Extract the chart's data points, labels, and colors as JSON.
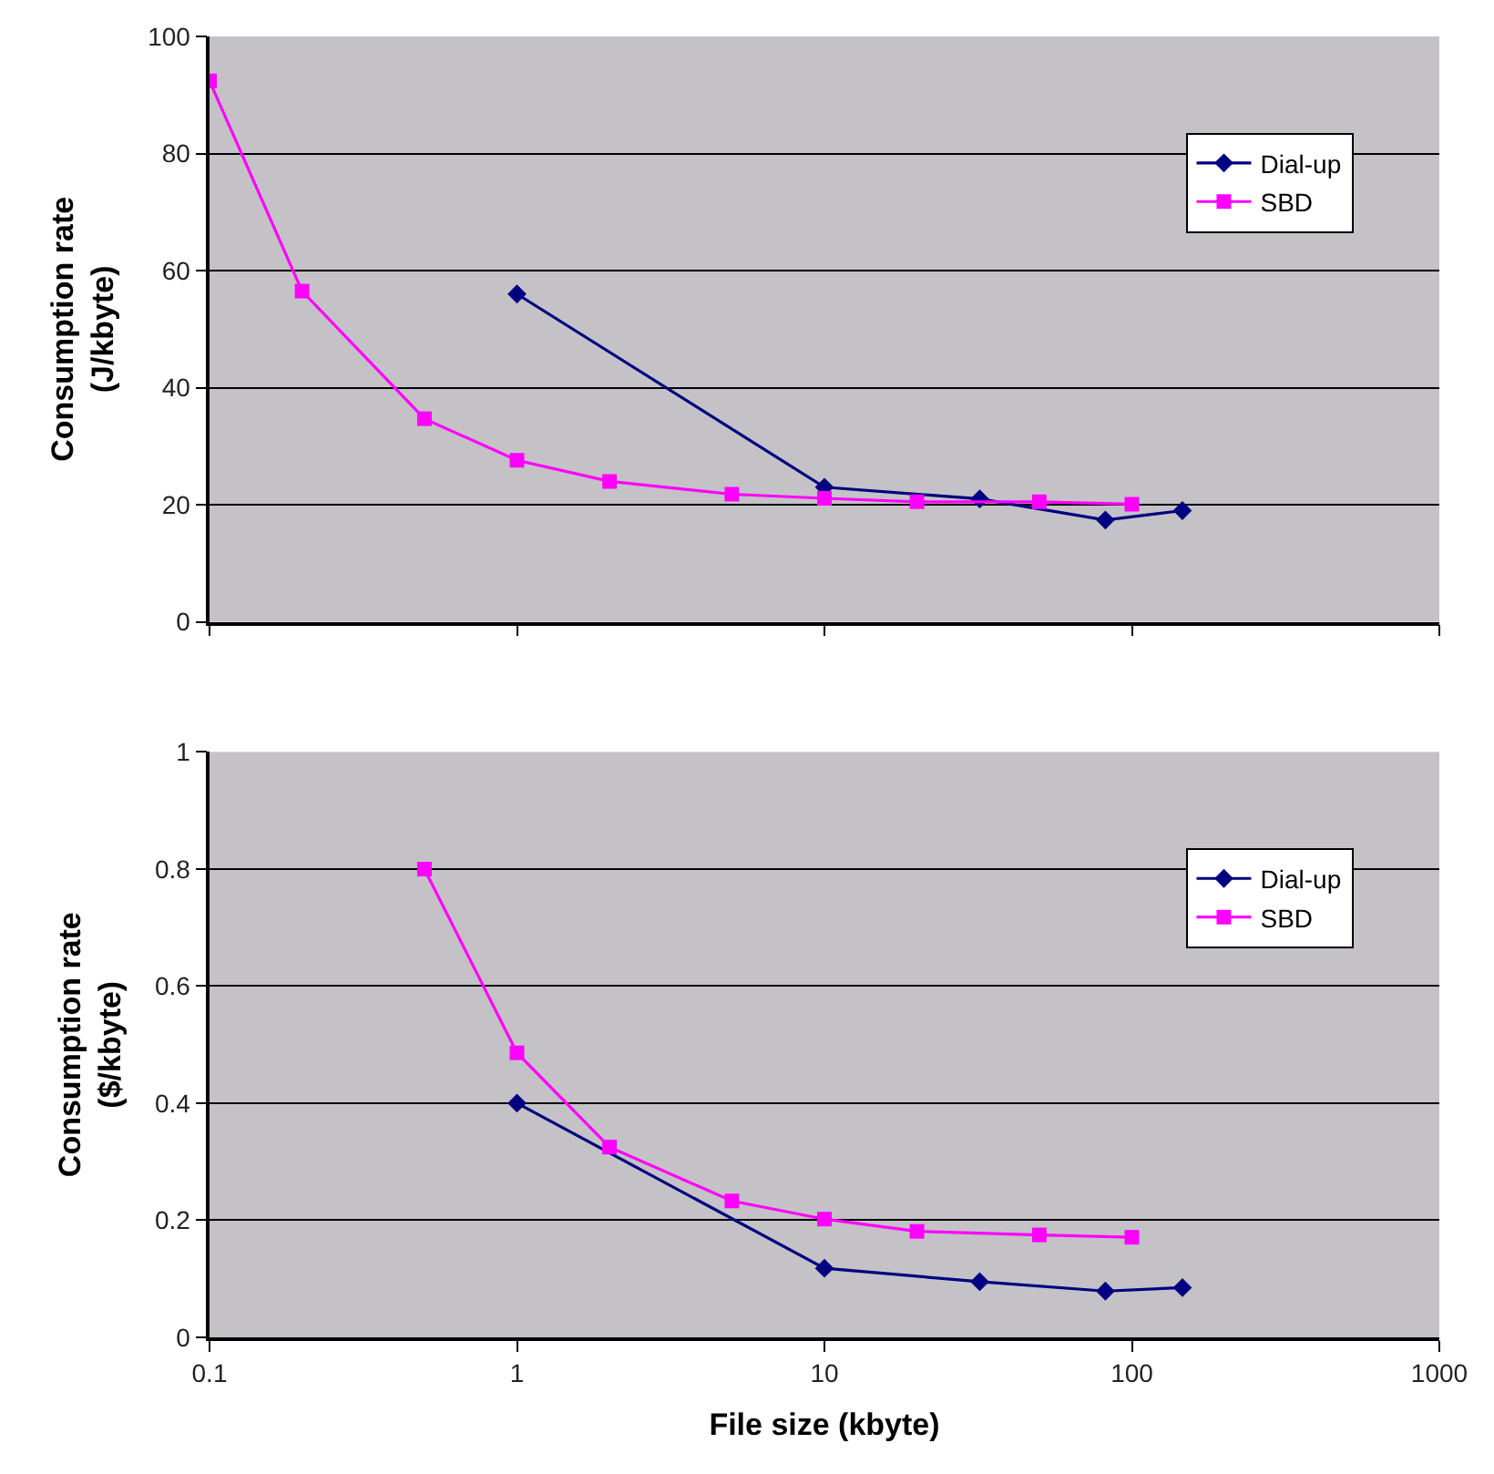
{
  "chart_data": [
    {
      "type": "line",
      "ylabel": "Consumption rate\n(J/kbyte)",
      "log": "x",
      "xlim": [
        0.1,
        1000
      ],
      "xticks": [
        0.1,
        1,
        10,
        100,
        1000
      ],
      "ylim": [
        0,
        100
      ],
      "yticks": [
        0,
        20,
        40,
        60,
        80,
        100
      ],
      "tick_labels": "y",
      "grid": "y",
      "legend": "right",
      "series": [
        {
          "name": "Dial-up",
          "color": "#000080",
          "marker": "diamond",
          "x": [
            1,
            10,
            32,
            82,
            146
          ],
          "values": [
            56,
            23,
            21,
            17.4,
            19
          ]
        },
        {
          "name": "SBD",
          "color": "#ff00ff",
          "marker": "square",
          "x": [
            0.1,
            0.2,
            0.5,
            1,
            2,
            5,
            10,
            20,
            50,
            100
          ],
          "values": [
            92.4,
            56.5,
            34.7,
            27.6,
            24,
            21.8,
            21.1,
            20.5,
            20.5,
            20.1
          ]
        }
      ]
    },
    {
      "type": "line",
      "ylabel": "Consumption rate\n($/kbyte)",
      "xlabel": "File size (kbyte)",
      "log": "x",
      "xlim": [
        0.1,
        1000
      ],
      "xticks": [
        0.1,
        1,
        10,
        100,
        1000
      ],
      "ylim": [
        0,
        1
      ],
      "yticks": [
        0,
        0.2,
        0.4,
        0.6,
        0.8,
        1
      ],
      "grid": "y",
      "legend": "right",
      "series": [
        {
          "name": "Dial-up",
          "color": "#000080",
          "marker": "diamond",
          "x": [
            1,
            10,
            32,
            82,
            146
          ],
          "values": [
            0.4,
            0.118,
            0.095,
            0.079,
            0.085
          ]
        },
        {
          "name": "SBD",
          "color": "#ff00ff",
          "marker": "square",
          "x": [
            0.5,
            1,
            2,
            5,
            10,
            20,
            50,
            100
          ],
          "values": [
            0.8,
            0.486,
            0.325,
            0.233,
            0.202,
            0.181,
            0.175,
            0.171
          ]
        }
      ]
    }
  ]
}
